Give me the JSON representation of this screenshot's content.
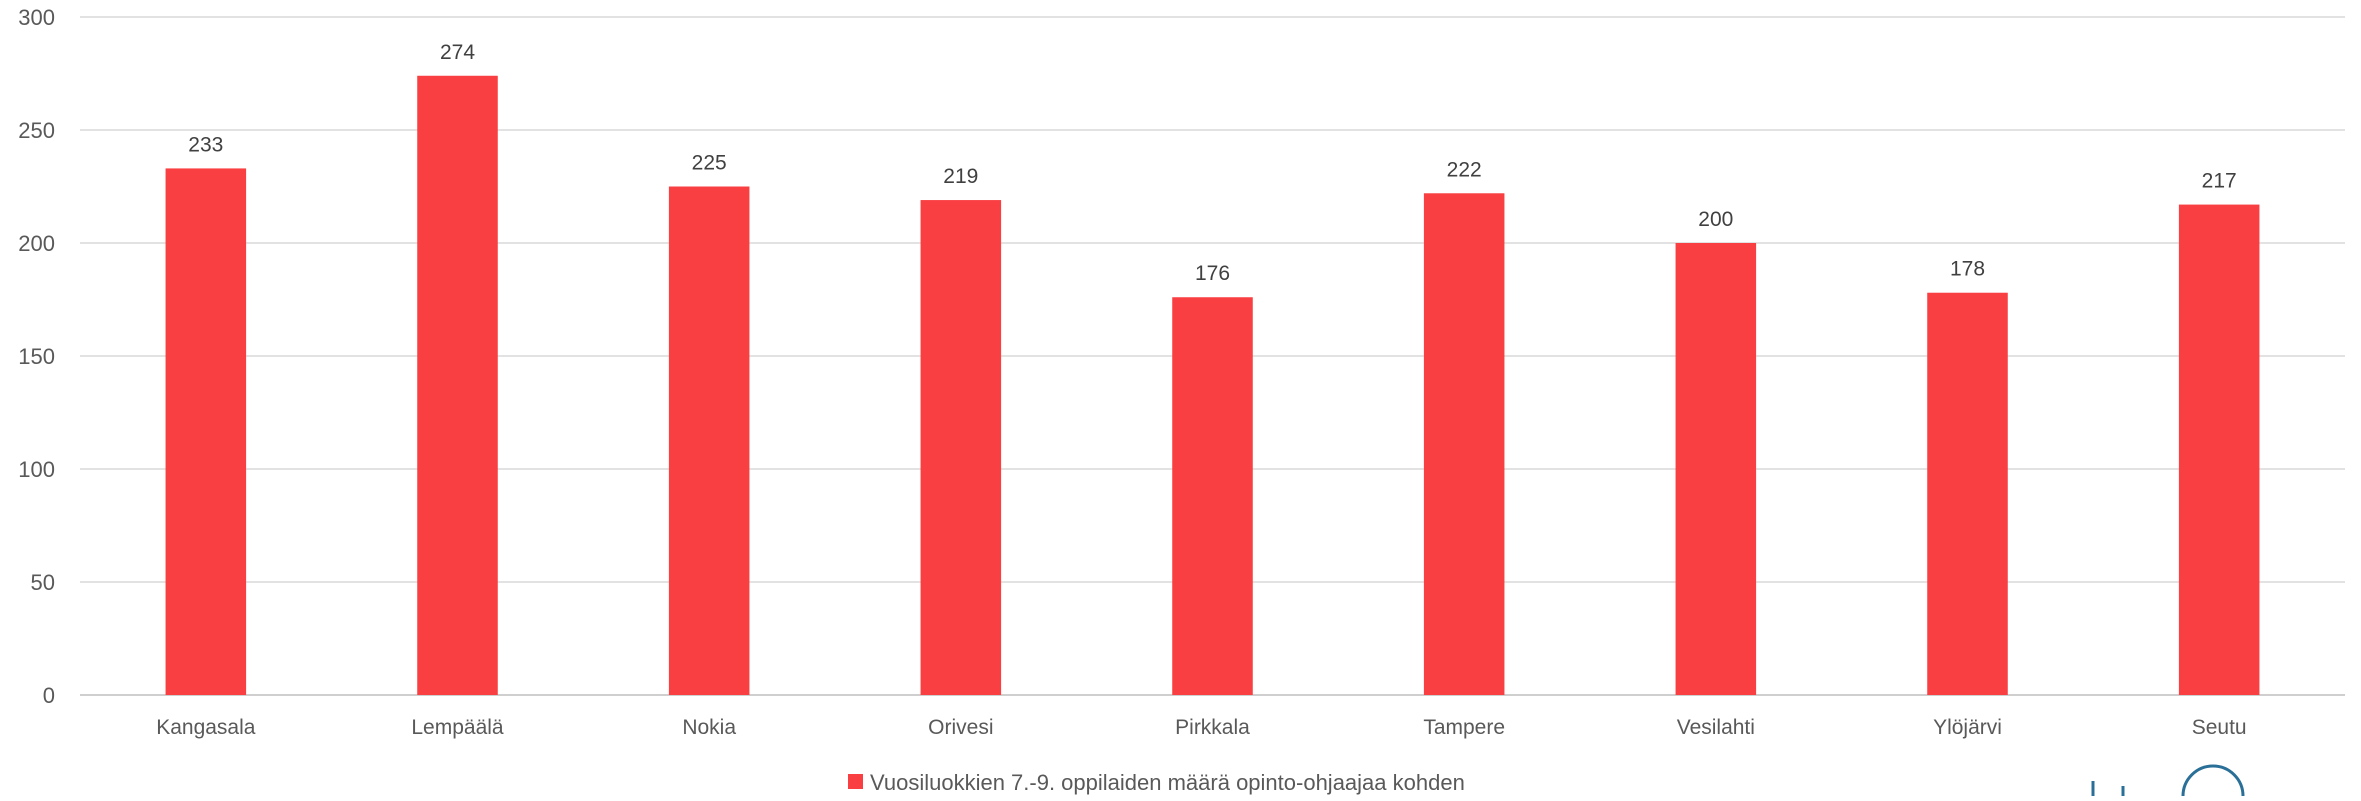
{
  "chart_data": {
    "type": "bar",
    "categories": [
      "Kangasala",
      "Lempäälä",
      "Nokia",
      "Orivesi",
      "Pirkkala",
      "Tampere",
      "Vesilahti",
      "Ylöjärvi",
      "Seutu"
    ],
    "series": [
      {
        "name": "Vuosiluokkien 7.-9. oppilaiden määrä opinto-ohjaajaa kohden",
        "values": [
          233,
          274,
          225,
          219,
          176,
          222,
          200,
          178,
          217
        ],
        "color": "#f93f42"
      }
    ],
    "ylim": [
      0,
      300
    ],
    "yticks": [
      "0",
      "50",
      "100",
      "150",
      "200",
      "250",
      "300"
    ],
    "grid": true,
    "legend_position": "bottom",
    "data_labels": true
  }
}
